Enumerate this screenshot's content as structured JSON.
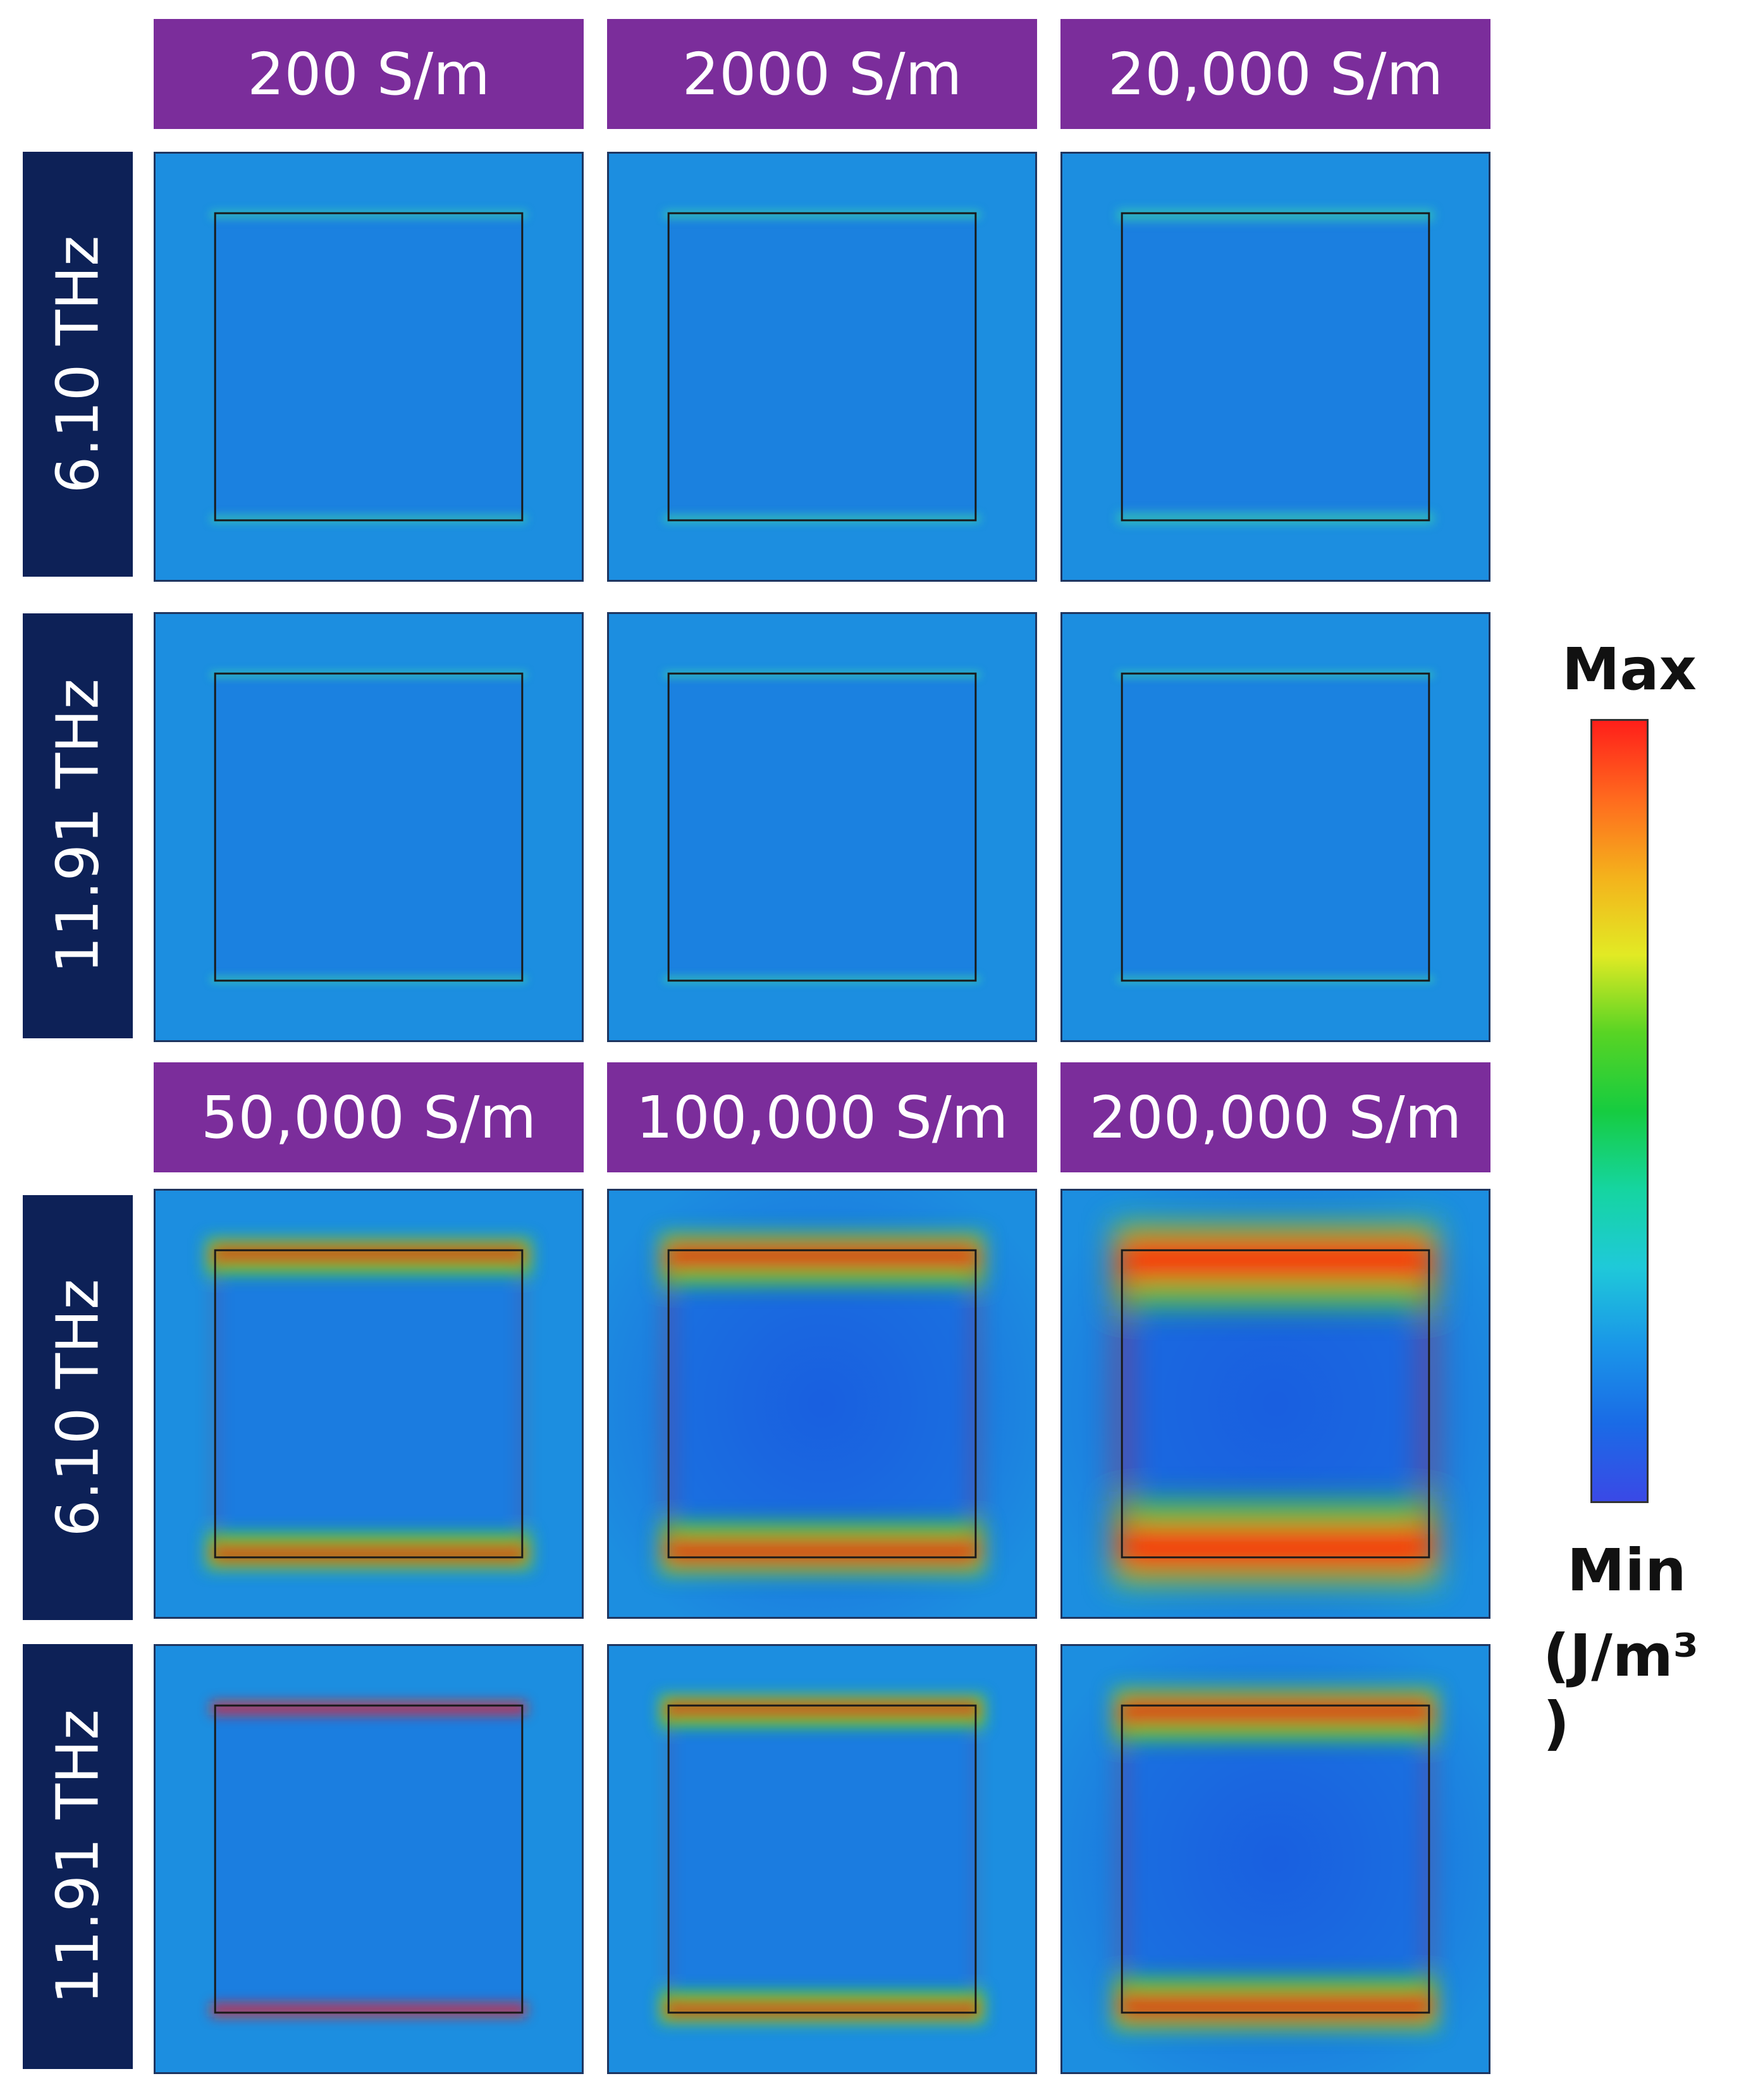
{
  "figure": {
    "column_headers_top": [
      "200 S/m",
      "2000 S/m",
      "20,000 S/m"
    ],
    "column_headers_bottom": [
      "50,000 S/m",
      "100,000 S/m",
      "200,000 S/m"
    ],
    "row_labels": [
      "6.10 THz",
      "11.91 THz",
      "6.10 THz",
      "11.91 THz"
    ],
    "panel_intensity": [
      [
        0.05,
        0.06,
        0.12
      ],
      [
        0.03,
        0.03,
        0.02
      ],
      [
        0.35,
        0.55,
        0.95
      ],
      [
        0.2,
        0.3,
        0.55
      ]
    ]
  },
  "colorbar": {
    "max_label": "Max",
    "min_label": "Min",
    "unit_label": "(J/m³ )",
    "colors": [
      "#ff1f1a",
      "#ff6a1e",
      "#f4b21c",
      "#e2ea24",
      "#58d424",
      "#16cc40",
      "#15d5a0",
      "#1fc9d9",
      "#1a96e8",
      "#1a6be6",
      "#3a49e6"
    ]
  },
  "colors": {
    "header_bg": "#7b2d9b",
    "row_label_bg": "#0d2157",
    "field_base": "#1c8ee0",
    "field_low": "#1a5fe0",
    "field_high": "#ff1a10"
  }
}
